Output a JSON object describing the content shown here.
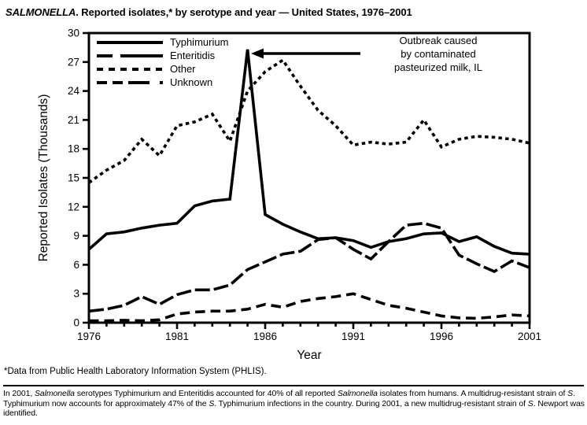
{
  "title": {
    "italic": "SALMONELLA",
    "rest": ". Reported isolates,* by serotype and year — United States, 1976–2001"
  },
  "legend": {
    "items": [
      {
        "label": "Typhimurium"
      },
      {
        "label": "Enteritidis"
      },
      {
        "label": "Other"
      },
      {
        "label": "Unknown"
      }
    ]
  },
  "annotation": {
    "lines": [
      "Outbreak caused",
      "by contaminated",
      "pasteurized milk, IL"
    ]
  },
  "footnote": "*Data from Public Health Laboratory Information System (PHLIS).",
  "note_segments": [
    {
      "text": "In 2001, ",
      "italic": false
    },
    {
      "text": "Salmonella",
      "italic": true
    },
    {
      "text": " serotypes Typhimurium and Enteritidis accounted for 40% of all reported ",
      "italic": false
    },
    {
      "text": "Salmonella",
      "italic": true
    },
    {
      "text": " isolates from humans. A multidrug-resistant strain of ",
      "italic": false
    },
    {
      "text": "S",
      "italic": true
    },
    {
      "text": ". Typhimurium now accounts for approximately 47% of the ",
      "italic": false
    },
    {
      "text": "S",
      "italic": true
    },
    {
      "text": ". Typhimurium infections in the country. During 2001, a new multidrug-resistant strain of ",
      "italic": false
    },
    {
      "text": "S",
      "italic": true
    },
    {
      "text": ". Newport was identified.",
      "italic": false
    }
  ],
  "colors": {
    "ink": "#000000",
    "background": "#ffffff"
  },
  "chart_data": {
    "type": "line",
    "title": "SALMONELLA. Reported isolates,* by serotype and year — United States, 1976–2001",
    "xlabel": "Year",
    "ylabel": "Reported Isolates (Thousands)",
    "ylim": [
      0,
      30
    ],
    "ytick_step": 3,
    "xticks_labeled": [
      1976,
      1981,
      1986,
      1991,
      1996,
      2001
    ],
    "grid": false,
    "legend_position": "inside-top-left",
    "years": [
      1976,
      1977,
      1978,
      1979,
      1980,
      1981,
      1982,
      1983,
      1984,
      1985,
      1986,
      1987,
      1988,
      1989,
      1990,
      1991,
      1992,
      1993,
      1994,
      1995,
      1996,
      1997,
      1998,
      1999,
      2000,
      2001
    ],
    "series": [
      {
        "name": "Typhimurium",
        "line_style": "solid",
        "values": [
          7.6,
          9.2,
          9.4,
          9.8,
          10.1,
          10.3,
          12.1,
          12.6,
          12.8,
          28.3,
          11.2,
          10.2,
          9.4,
          8.7,
          8.8,
          8.5,
          7.8,
          8.4,
          8.7,
          9.2,
          9.3,
          8.4,
          8.9,
          7.9,
          7.2,
          7.1
        ]
      },
      {
        "name": "Enteritidis",
        "line_style": "long-dash",
        "values": [
          1.2,
          1.4,
          1.8,
          2.7,
          1.9,
          2.9,
          3.4,
          3.4,
          3.9,
          5.5,
          6.3,
          7.1,
          7.4,
          8.6,
          8.8,
          7.6,
          6.6,
          8.4,
          10.1,
          10.3,
          9.8,
          7.0,
          6.1,
          5.3,
          6.4,
          5.7
        ]
      },
      {
        "name": "Other",
        "line_style": "dotted",
        "values": [
          14.5,
          15.8,
          16.8,
          19.0,
          17.3,
          20.4,
          20.8,
          21.6,
          18.8,
          24.0,
          26.0,
          27.2,
          24.5,
          22.0,
          20.4,
          18.4,
          18.7,
          18.5,
          18.7,
          21.0,
          18.2,
          19.0,
          19.3,
          19.2,
          19.0,
          18.6
        ]
      },
      {
        "name": "Unknown",
        "line_style": "dash",
        "values": [
          0.2,
          0.2,
          0.25,
          0.2,
          0.3,
          0.9,
          1.1,
          1.2,
          1.2,
          1.4,
          1.9,
          1.6,
          2.2,
          2.5,
          2.7,
          3.0,
          2.4,
          1.8,
          1.5,
          1.1,
          0.7,
          0.5,
          0.45,
          0.6,
          0.8,
          0.7
        ]
      }
    ],
    "annotation": {
      "text": "Outbreak caused by contaminated pasteurized milk, IL",
      "points_to": {
        "series": "Typhimurium",
        "year": 1985,
        "value": 28.3
      }
    }
  }
}
